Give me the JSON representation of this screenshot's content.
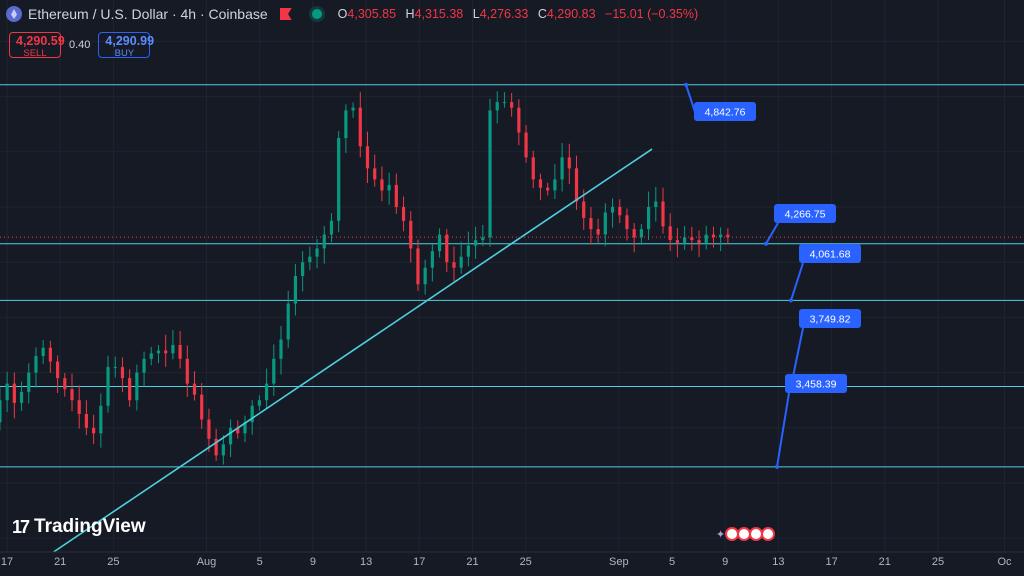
{
  "header": {
    "title": "Ethereum / U.S. Dollar · 4h · Coinbase",
    "ohlc": [
      {
        "k": "O",
        "v": "4,305.85"
      },
      {
        "k": "H",
        "v": "4,315.38"
      },
      {
        "k": "L",
        "v": "4,276.33"
      },
      {
        "k": "C",
        "v": "4,290.83"
      },
      {
        "k": "",
        "v": "−15.01 (−0.35%)"
      }
    ]
  },
  "trade": {
    "sell_price": "4,290.59",
    "sell_label": "SELL",
    "spread": "0.40",
    "buy_price": "4,290.99",
    "buy_label": "BUY"
  },
  "logo": {
    "text": "TradingView",
    "icon": "tradingview-logo-icon"
  },
  "colors": {
    "up": "#089981",
    "down": "#f23645",
    "line": "#4dd0e1",
    "label": "#2962ff",
    "bg": "#161a25"
  },
  "chart_data": {
    "type": "candlestick",
    "ylim": [
      3150,
      5150
    ],
    "x_ticks": [
      "17",
      "21",
      "25",
      "Aug",
      "5",
      "9",
      "13",
      "17",
      "21",
      "25",
      "Sep",
      "5",
      "9",
      "13",
      "17",
      "21",
      "25",
      "Oc"
    ],
    "x_tick_days": [
      17,
      21,
      25,
      32,
      36,
      40,
      44,
      48,
      52,
      56,
      63,
      67,
      71,
      75,
      79,
      83,
      87,
      92
    ],
    "x_start_day": 17,
    "x_unit": "days since Jul 1",
    "levels": [
      {
        "value": 4842.76,
        "label": "4,842.76"
      },
      {
        "value": 4266.75,
        "label": "4,266.75"
      },
      {
        "value": 4061.68,
        "label": "4,061.68"
      },
      {
        "value": 3749.82,
        "label": "3,749.82"
      },
      {
        "value": 3458.39,
        "label": "3,458.39"
      }
    ],
    "current_price": 4290.83,
    "trendline": {
      "x1_day": 20.5,
      "y1": 3150,
      "x2_day": 65.5,
      "y2": 4610
    },
    "closes": [
      3400,
      3480,
      3560,
      3620,
      3700,
      3760,
      3690,
      3730,
      3800,
      3860,
      3890,
      3840,
      3780,
      3740,
      3700,
      3650,
      3600,
      3580,
      3680,
      3820,
      3820,
      3780,
      3700,
      3800,
      3850,
      3870,
      3880,
      3870,
      3900,
      3850,
      3760,
      3720,
      3630,
      3560,
      3500,
      3540,
      3600,
      3580,
      3620,
      3680,
      3700,
      3760,
      3850,
      3920,
      4050,
      4150,
      4200,
      4220,
      4250,
      4300,
      4350,
      4650,
      4750,
      4760,
      4620,
      4540,
      4500,
      4460,
      4480,
      4400,
      4350,
      4250,
      4120,
      4180,
      4240,
      4300,
      4200,
      4180,
      4220,
      4260,
      4280,
      4290,
      4750,
      4780,
      4780,
      4760,
      4670,
      4580,
      4500,
      4470,
      4460,
      4500,
      4580,
      4540,
      4420,
      4360,
      4320,
      4300,
      4380,
      4400,
      4370,
      4320,
      4290,
      4320,
      4400,
      4420,
      4330,
      4280,
      4270,
      4290,
      4280,
      4270,
      4300,
      4290,
      4300,
      4290
    ]
  }
}
